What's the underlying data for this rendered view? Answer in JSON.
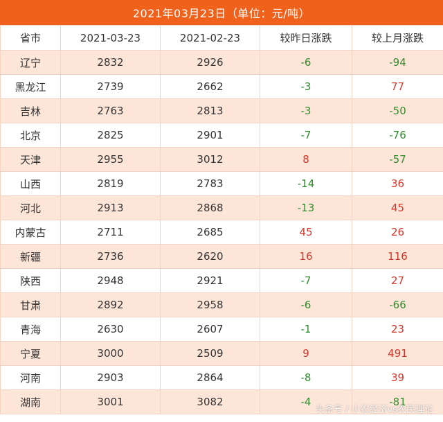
{
  "title": "2021年03月23日（单位：元/吨）",
  "headers": [
    "省市",
    "2021-03-23",
    "2021-02-23",
    "较昨日涨跌",
    "较上月涨跌"
  ],
  "rows": [
    {
      "province": "辽宁",
      "today": "2832",
      "last_month": "2926",
      "day_change": "-6",
      "month_change": "-94"
    },
    {
      "province": "黑龙江",
      "today": "2739",
      "last_month": "2662",
      "day_change": "-3",
      "month_change": "77"
    },
    {
      "province": "吉林",
      "today": "2763",
      "last_month": "2813",
      "day_change": "-3",
      "month_change": "-50"
    },
    {
      "province": "北京",
      "today": "2825",
      "last_month": "2901",
      "day_change": "-7",
      "month_change": "-76"
    },
    {
      "province": "天津",
      "today": "2955",
      "last_month": "3012",
      "day_change": "8",
      "month_change": "-57"
    },
    {
      "province": "山西",
      "today": "2819",
      "last_month": "2783",
      "day_change": "-14",
      "month_change": "36"
    },
    {
      "province": "河北",
      "today": "2913",
      "last_month": "2868",
      "day_change": "-13",
      "month_change": "45"
    },
    {
      "province": "内蒙古",
      "today": "2711",
      "last_month": "2685",
      "day_change": "45",
      "month_change": "26"
    },
    {
      "province": "新疆",
      "today": "2736",
      "last_month": "2620",
      "day_change": "16",
      "month_change": "116"
    },
    {
      "province": "陕西",
      "today": "2948",
      "last_month": "2921",
      "day_change": "-7",
      "month_change": "27"
    },
    {
      "province": "甘肃",
      "today": "2892",
      "last_month": "2958",
      "day_change": "-6",
      "month_change": "-66"
    },
    {
      "province": "青海",
      "today": "2630",
      "last_month": "2607",
      "day_change": "-1",
      "month_change": "23"
    },
    {
      "province": "宁夏",
      "today": "3000",
      "last_month": "2509",
      "day_change": "9",
      "month_change": "491"
    },
    {
      "province": "河南",
      "today": "2903",
      "last_month": "2864",
      "day_change": "-8",
      "month_change": "39"
    },
    {
      "province": "湖南",
      "today": "3001",
      "last_month": "3082",
      "day_change": "-4",
      "month_change": "-81"
    }
  ],
  "colors": {
    "header_bg": "#f0611c",
    "row_alt_bg": "#fde5d8",
    "rise": "#d1372a",
    "fall": "#2f8c2c"
  },
  "watermark": "头条号 / 小农经济vs农民理论"
}
